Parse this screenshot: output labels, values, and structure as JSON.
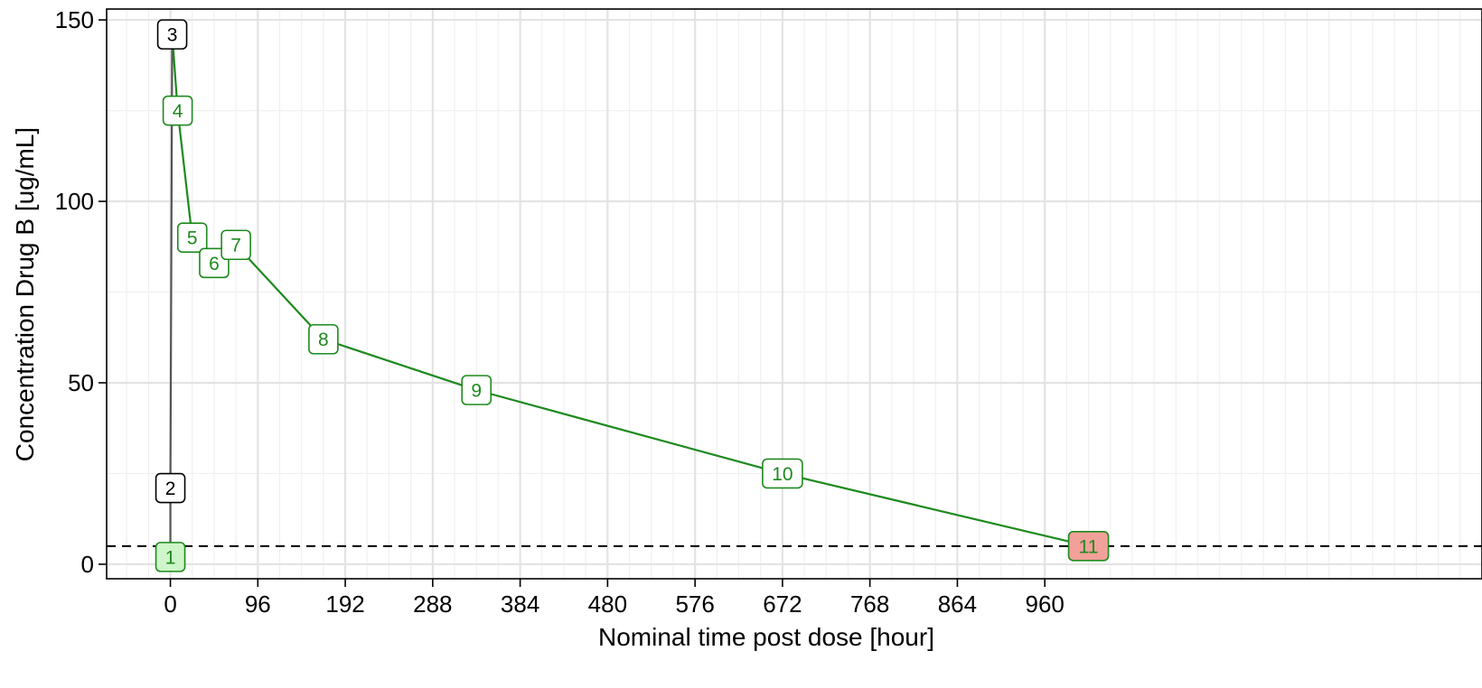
{
  "chart_data": {
    "type": "line",
    "xlabel": "Nominal time post dose [hour]",
    "ylabel": "Concentration Drug B [ug/mL]",
    "xlim": [
      -70,
      1440
    ],
    "ylim": [
      -4,
      153
    ],
    "x_ticks": [
      0,
      96,
      192,
      288,
      384,
      480,
      576,
      672,
      768,
      864,
      960
    ],
    "y_ticks": [
      0,
      50,
      100,
      150
    ],
    "x_minor_step": 24,
    "y_minor_step": 25,
    "grid": true,
    "reference_line": {
      "y": 5,
      "style": "dashed",
      "color": "#000000"
    },
    "colors": {
      "pre_dose_line": "#555555",
      "post_dose_line": "#1e8a1e",
      "label_below_ref_fill": "#cdf5c9",
      "label_last_below_ref_fill": "#f2a09a"
    },
    "points": [
      {
        "label": "1",
        "x": 0,
        "y": 2
      },
      {
        "label": "2",
        "x": 0,
        "y": 21
      },
      {
        "label": "3",
        "x": 2,
        "y": 146
      },
      {
        "label": "4",
        "x": 8,
        "y": 125
      },
      {
        "label": "5",
        "x": 24,
        "y": 90
      },
      {
        "label": "6",
        "x": 48,
        "y": 83
      },
      {
        "label": "7",
        "x": 72,
        "y": 88
      },
      {
        "label": "8",
        "x": 168,
        "y": 62
      },
      {
        "label": "9",
        "x": 336,
        "y": 48
      },
      {
        "label": "10",
        "x": 672,
        "y": 25
      },
      {
        "label": "11",
        "x": 1008,
        "y": 5
      }
    ]
  }
}
